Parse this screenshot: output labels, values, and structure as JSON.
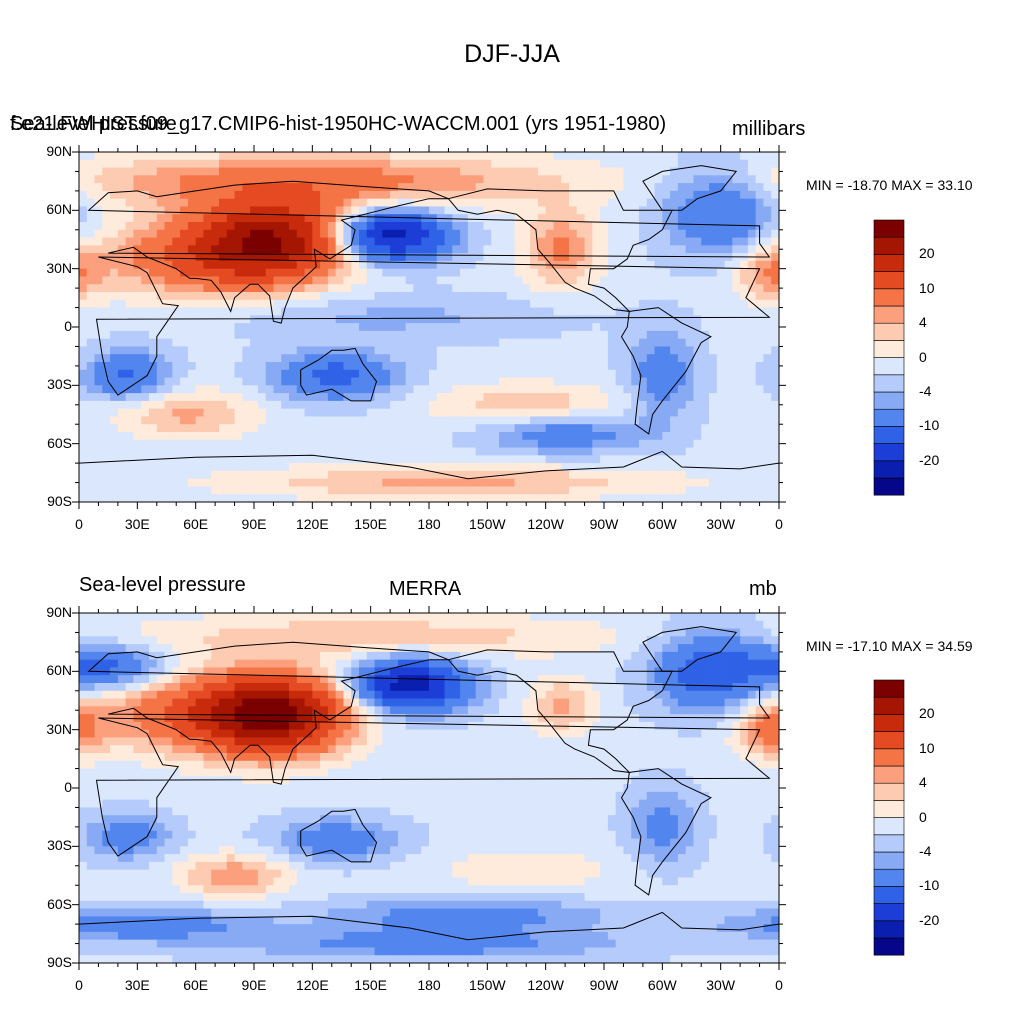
{
  "figure": {
    "title": "DJF-JJA"
  },
  "palette": {
    "levels": [
      "<-25",
      "-25 to -20",
      "-20 to -15",
      "-15 to -10",
      "-10 to -6",
      "-6 to -4",
      "-4 to -2",
      "-2 to 0",
      "0 to 2",
      "2 to 4",
      "4 to 6",
      "6 to 10",
      "10 to 15",
      "15 to 20",
      "20 to 25",
      ">25"
    ],
    "colors": [
      "#06068a",
      "#0a1fb0",
      "#1c3ed6",
      "#2f62e6",
      "#5286ee",
      "#88aaf5",
      "#b5cbfb",
      "#dbe7fd",
      "#feebdc",
      "#fdcbb1",
      "#fb9f7d",
      "#f47446",
      "#e54b22",
      "#c82a0c",
      "#a51602",
      "#7b0000"
    ],
    "labels": [
      "-20",
      "-10",
      "-4",
      "0",
      "4",
      "10",
      "20"
    ]
  },
  "chart_data": [
    {
      "type": "heatmap",
      "name": "model",
      "left_title": "Sea-level pressure",
      "center_title": "f.e21.FWHIST.f09_g17.CMIP6-hist-1950HC-WACCM.001 (yrs 1951-1980)",
      "units": "millibars",
      "min_max_text": "MIN = -18.70 MAX =  33.10",
      "min": -18.7,
      "max": 33.1,
      "x_ticklabels": [
        "0",
        "30E",
        "60E",
        "90E",
        "120E",
        "150E",
        "180",
        "150W",
        "120W",
        "90W",
        "60W",
        "30W",
        "0"
      ],
      "y_ticklabels": [
        "90N",
        "60N",
        "30N",
        "0",
        "30S",
        "60S",
        "90S"
      ],
      "xlim": [
        0,
        360
      ],
      "ylim": [
        -90,
        90
      ],
      "colorbar_labels": [
        "20",
        "10",
        "4",
        "0",
        "-4",
        "-10",
        "-20"
      ]
    },
    {
      "type": "heatmap",
      "name": "obs",
      "left_title": "Sea-level pressure",
      "center_title": "MERRA",
      "units": "mb",
      "min_max_text": "MIN = -17.10 MAX =  34.59",
      "min": -17.1,
      "max": 34.59,
      "x_ticklabels": [
        "0",
        "30E",
        "60E",
        "90E",
        "120E",
        "150E",
        "180",
        "150W",
        "120W",
        "90W",
        "60W",
        "30W",
        "0"
      ],
      "y_ticklabels": [
        "90N",
        "60N",
        "30N",
        "0",
        "30S",
        "60S",
        "90S"
      ],
      "xlim": [
        0,
        360
      ],
      "ylim": [
        -90,
        90
      ],
      "colorbar_labels": [
        "20",
        "10",
        "4",
        "0",
        "-4",
        "-10",
        "-20"
      ]
    }
  ]
}
